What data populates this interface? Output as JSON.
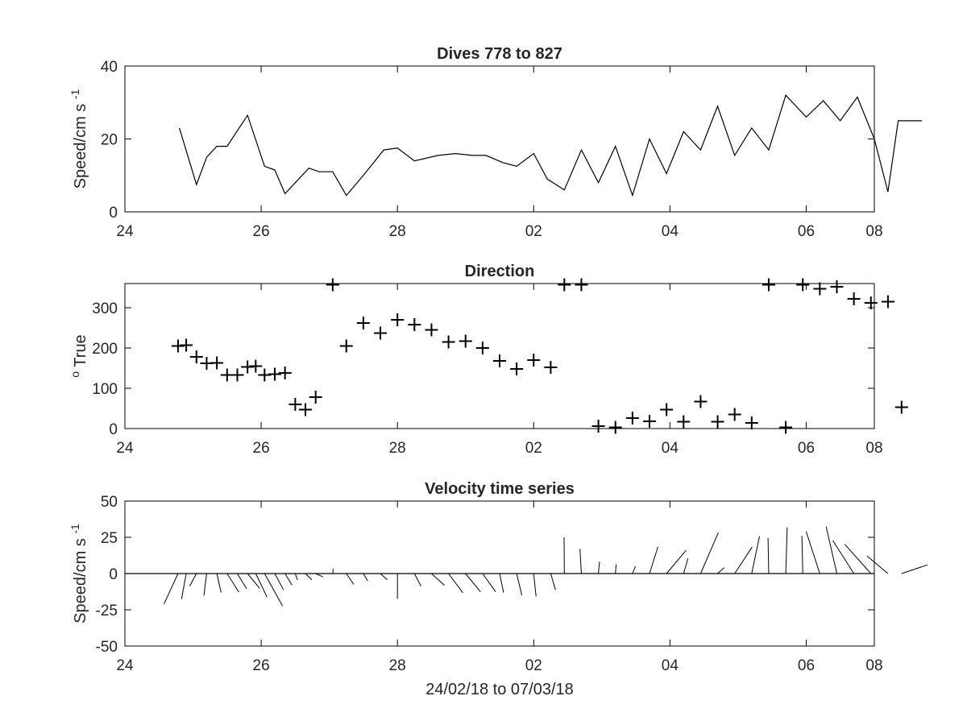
{
  "chart_data": [
    {
      "type": "line",
      "title": "Dives 778 to 827",
      "xlabel": "",
      "ylabel": "Speed/cm s",
      "ylabel_superscript": "-1",
      "xlim": [
        24,
        35
      ],
      "ylim": [
        0,
        40
      ],
      "x_ticks": [
        24,
        26,
        28,
        30,
        32,
        34,
        35
      ],
      "x_tick_labels": [
        "24",
        "26",
        "28",
        "02",
        "04",
        "06",
        "08"
      ],
      "y_ticks": [
        0,
        20,
        40
      ],
      "y_tick_labels": [
        "0",
        "20",
        "40"
      ],
      "grid": false,
      "series": [
        {
          "x": [
            24.8,
            25.05,
            25.2,
            25.35,
            25.5,
            25.8,
            26.05,
            26.2,
            26.35,
            26.7,
            26.85,
            27.05,
            27.25,
            27.5,
            27.8,
            28.0,
            28.25,
            28.6,
            28.85,
            29.1,
            29.3,
            29.55,
            29.75,
            30.0,
            30.2,
            30.45,
            30.7,
            30.95,
            31.2,
            31.45,
            31.7,
            31.95,
            32.2,
            32.45,
            32.7,
            32.95,
            33.2,
            33.45,
            33.7,
            34.0,
            34.25,
            34.5,
            34.75,
            35.0,
            35.2,
            35.35,
            35.5,
            35.7
          ],
          "y": [
            23,
            7.5,
            15,
            18,
            18,
            26.5,
            12.5,
            11.5,
            5,
            12,
            11,
            11,
            4.5,
            10,
            17,
            17.5,
            14,
            15.5,
            16,
            15.5,
            15.5,
            13.5,
            12.5,
            16,
            9,
            6,
            17,
            8,
            18,
            4.5,
            20,
            10.5,
            22,
            17,
            29,
            15.5,
            23,
            17,
            32,
            26,
            30.5,
            25,
            31.5,
            20,
            5.5,
            25,
            25,
            25
          ]
        }
      ]
    },
    {
      "type": "scatter",
      "title": "Direction",
      "xlabel": "",
      "ylabel": "True",
      "ylabel_superscript": "o",
      "xlim": [
        24,
        35
      ],
      "ylim": [
        0,
        360
      ],
      "x_ticks": [
        24,
        26,
        28,
        30,
        32,
        34,
        35
      ],
      "x_tick_labels": [
        "24",
        "26",
        "28",
        "02",
        "04",
        "06",
        "08"
      ],
      "y_ticks": [
        0,
        100,
        200,
        300
      ],
      "y_tick_labels": [
        "0",
        "100",
        "200",
        "300"
      ],
      "grid": false,
      "marker": "+",
      "series": [
        {
          "x": [
            24.78,
            24.9,
            25.05,
            25.2,
            25.35,
            25.5,
            25.65,
            25.8,
            25.92,
            26.05,
            26.2,
            26.35,
            26.5,
            26.65,
            26.8,
            27.05,
            27.25,
            27.5,
            27.75,
            28.0,
            28.25,
            28.5,
            28.75,
            29.0,
            29.25,
            29.5,
            29.75,
            30.0,
            30.25,
            30.45,
            30.7,
            30.95,
            31.2,
            31.45,
            31.7,
            31.95,
            32.2,
            32.45,
            32.7,
            32.95,
            33.2,
            33.45,
            33.7,
            33.95,
            34.2,
            34.45,
            34.7,
            34.95,
            35.2,
            35.4
          ],
          "y": [
            205,
            207,
            178,
            162,
            163,
            133,
            133,
            153,
            155,
            133,
            135,
            138,
            60,
            47,
            78,
            357,
            205,
            262,
            237,
            270,
            258,
            245,
            215,
            217,
            200,
            168,
            148,
            170,
            152,
            357,
            357,
            6,
            3,
            26,
            18,
            47,
            17,
            67,
            17,
            35,
            14,
            357,
            3,
            357,
            347,
            352,
            322,
            312,
            315,
            53
          ]
        }
      ]
    },
    {
      "type": "vector",
      "title": "Velocity time series",
      "xlabel": "24/02/18 to 07/03/18",
      "ylabel": "Speed/cm s",
      "ylabel_superscript": "-1",
      "xlim": [
        24,
        35
      ],
      "ylim": [
        -50,
        50
      ],
      "x_ticks": [
        24,
        26,
        28,
        30,
        32,
        34,
        35
      ],
      "x_tick_labels": [
        "24",
        "26",
        "28",
        "02",
        "04",
        "06",
        "08"
      ],
      "y_ticks": [
        -50,
        -25,
        0,
        25,
        50
      ],
      "y_tick_labels": [
        "-50",
        "-25",
        "0",
        "25",
        "50"
      ],
      "grid": false,
      "baseline": 0,
      "sticks": {
        "x": [
          24.78,
          24.9,
          25.05,
          25.2,
          25.35,
          25.5,
          25.65,
          25.8,
          25.92,
          26.05,
          26.2,
          26.35,
          26.5,
          26.65,
          26.8,
          27.05,
          27.25,
          27.5,
          27.75,
          28.0,
          28.25,
          28.5,
          28.75,
          29.0,
          29.25,
          29.5,
          29.75,
          30.0,
          30.25,
          30.45,
          30.7,
          30.95,
          31.2,
          31.45,
          31.7,
          31.95,
          32.2,
          32.45,
          32.7,
          32.95,
          33.2,
          33.45,
          33.7,
          33.95,
          34.2,
          34.45,
          34.7,
          34.95,
          35.2,
          35.4
        ],
        "u": [
          -9.7,
          -3.2,
          -4.7,
          -1.9,
          2.9,
          8.1,
          6.4,
          8.4,
          7.8,
          12.4,
          6.0,
          4.8,
          1.6,
          4.5,
          5.0,
          0.4,
          5.2,
          3.0,
          4.8,
          0.0,
          4.5,
          8.9,
          9.9,
          10.3,
          9.0,
          2.7,
          3.6,
          1.6,
          3.3,
          -0.2,
          -1.0,
          0.8,
          0.5,
          2.0,
          5.8,
          13.5,
          3.0,
          12.2,
          4.5,
          12.0,
          5.4,
          -0.5,
          1.0,
          -0.6,
          -9.5,
          -7.4,
          -14.5,
          -18.1,
          -14.4,
          17.9
        ],
        "v": [
          -21.0,
          -17.5,
          -8.7,
          -15.1,
          -13.1,
          -12.8,
          -10.5,
          -10.2,
          -16.2,
          -22.4,
          -11.2,
          -7.9,
          -4.4,
          -4.4,
          -2.3,
          3.4,
          -7.5,
          -5.0,
          -4.3,
          -17.5,
          -8.8,
          -8.1,
          -13.3,
          -12.6,
          -12.6,
          -13.1,
          -15.0,
          -15.7,
          -11.2,
          25.0,
          17.0,
          8.2,
          6.2,
          5.0,
          18.4,
          16.0,
          10.3,
          28.3,
          4.1,
          18.2,
          25.8,
          24.5,
          31.9,
          26.0,
          29.1,
          32.4,
          22.8,
          20.2,
          12.1,
          6.0
        ]
      }
    }
  ]
}
